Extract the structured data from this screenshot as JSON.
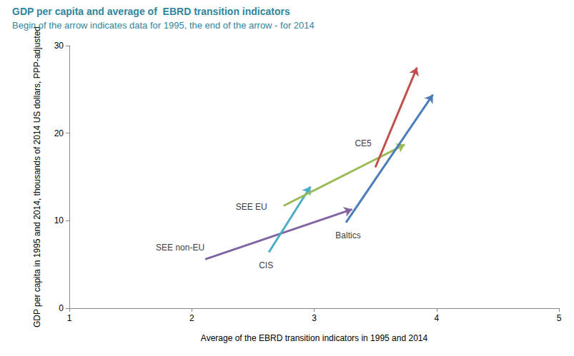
{
  "chart_data": {
    "type": "arrow",
    "title": "GDP per capita and average of  EBRD transition indicators",
    "subtitle": "Begin of the arrow indicates data for 1995, the end of the arrow - for 2014",
    "x_label": "Average of the EBRD transition indicators in 1995 and 2014",
    "y_label": "GDP per capita in 1995 and 2014, thousands of 2014 US dollars, PPP-adjusted",
    "xlim": [
      1,
      5
    ],
    "xticks": [
      1,
      2,
      3,
      4,
      5
    ],
    "ylim": [
      0,
      30
    ],
    "yticks": [
      0,
      10,
      20,
      30
    ],
    "grid": false,
    "series": [
      {
        "name": "SEE non-EU",
        "color": "#8064a2",
        "x": [
          2.11,
          3.31
        ],
        "values": [
          5.6,
          11.3
        ]
      },
      {
        "name": "CIS",
        "color": "#4bacc6",
        "x": [
          2.63,
          2.97
        ],
        "values": [
          6.4,
          13.9
        ]
      },
      {
        "name": "SEE EU",
        "color": "#9bbb59",
        "x": [
          2.75,
          3.74
        ],
        "values": [
          11.7,
          18.7
        ]
      },
      {
        "name": "Baltics",
        "color": "#4a7ebb",
        "x": [
          3.26,
          3.97
        ],
        "values": [
          9.8,
          24.4
        ]
      },
      {
        "name": "CE5",
        "color": "#c0504d",
        "x": [
          3.5,
          3.84
        ],
        "values": [
          16.1,
          27.5
        ]
      }
    ]
  }
}
